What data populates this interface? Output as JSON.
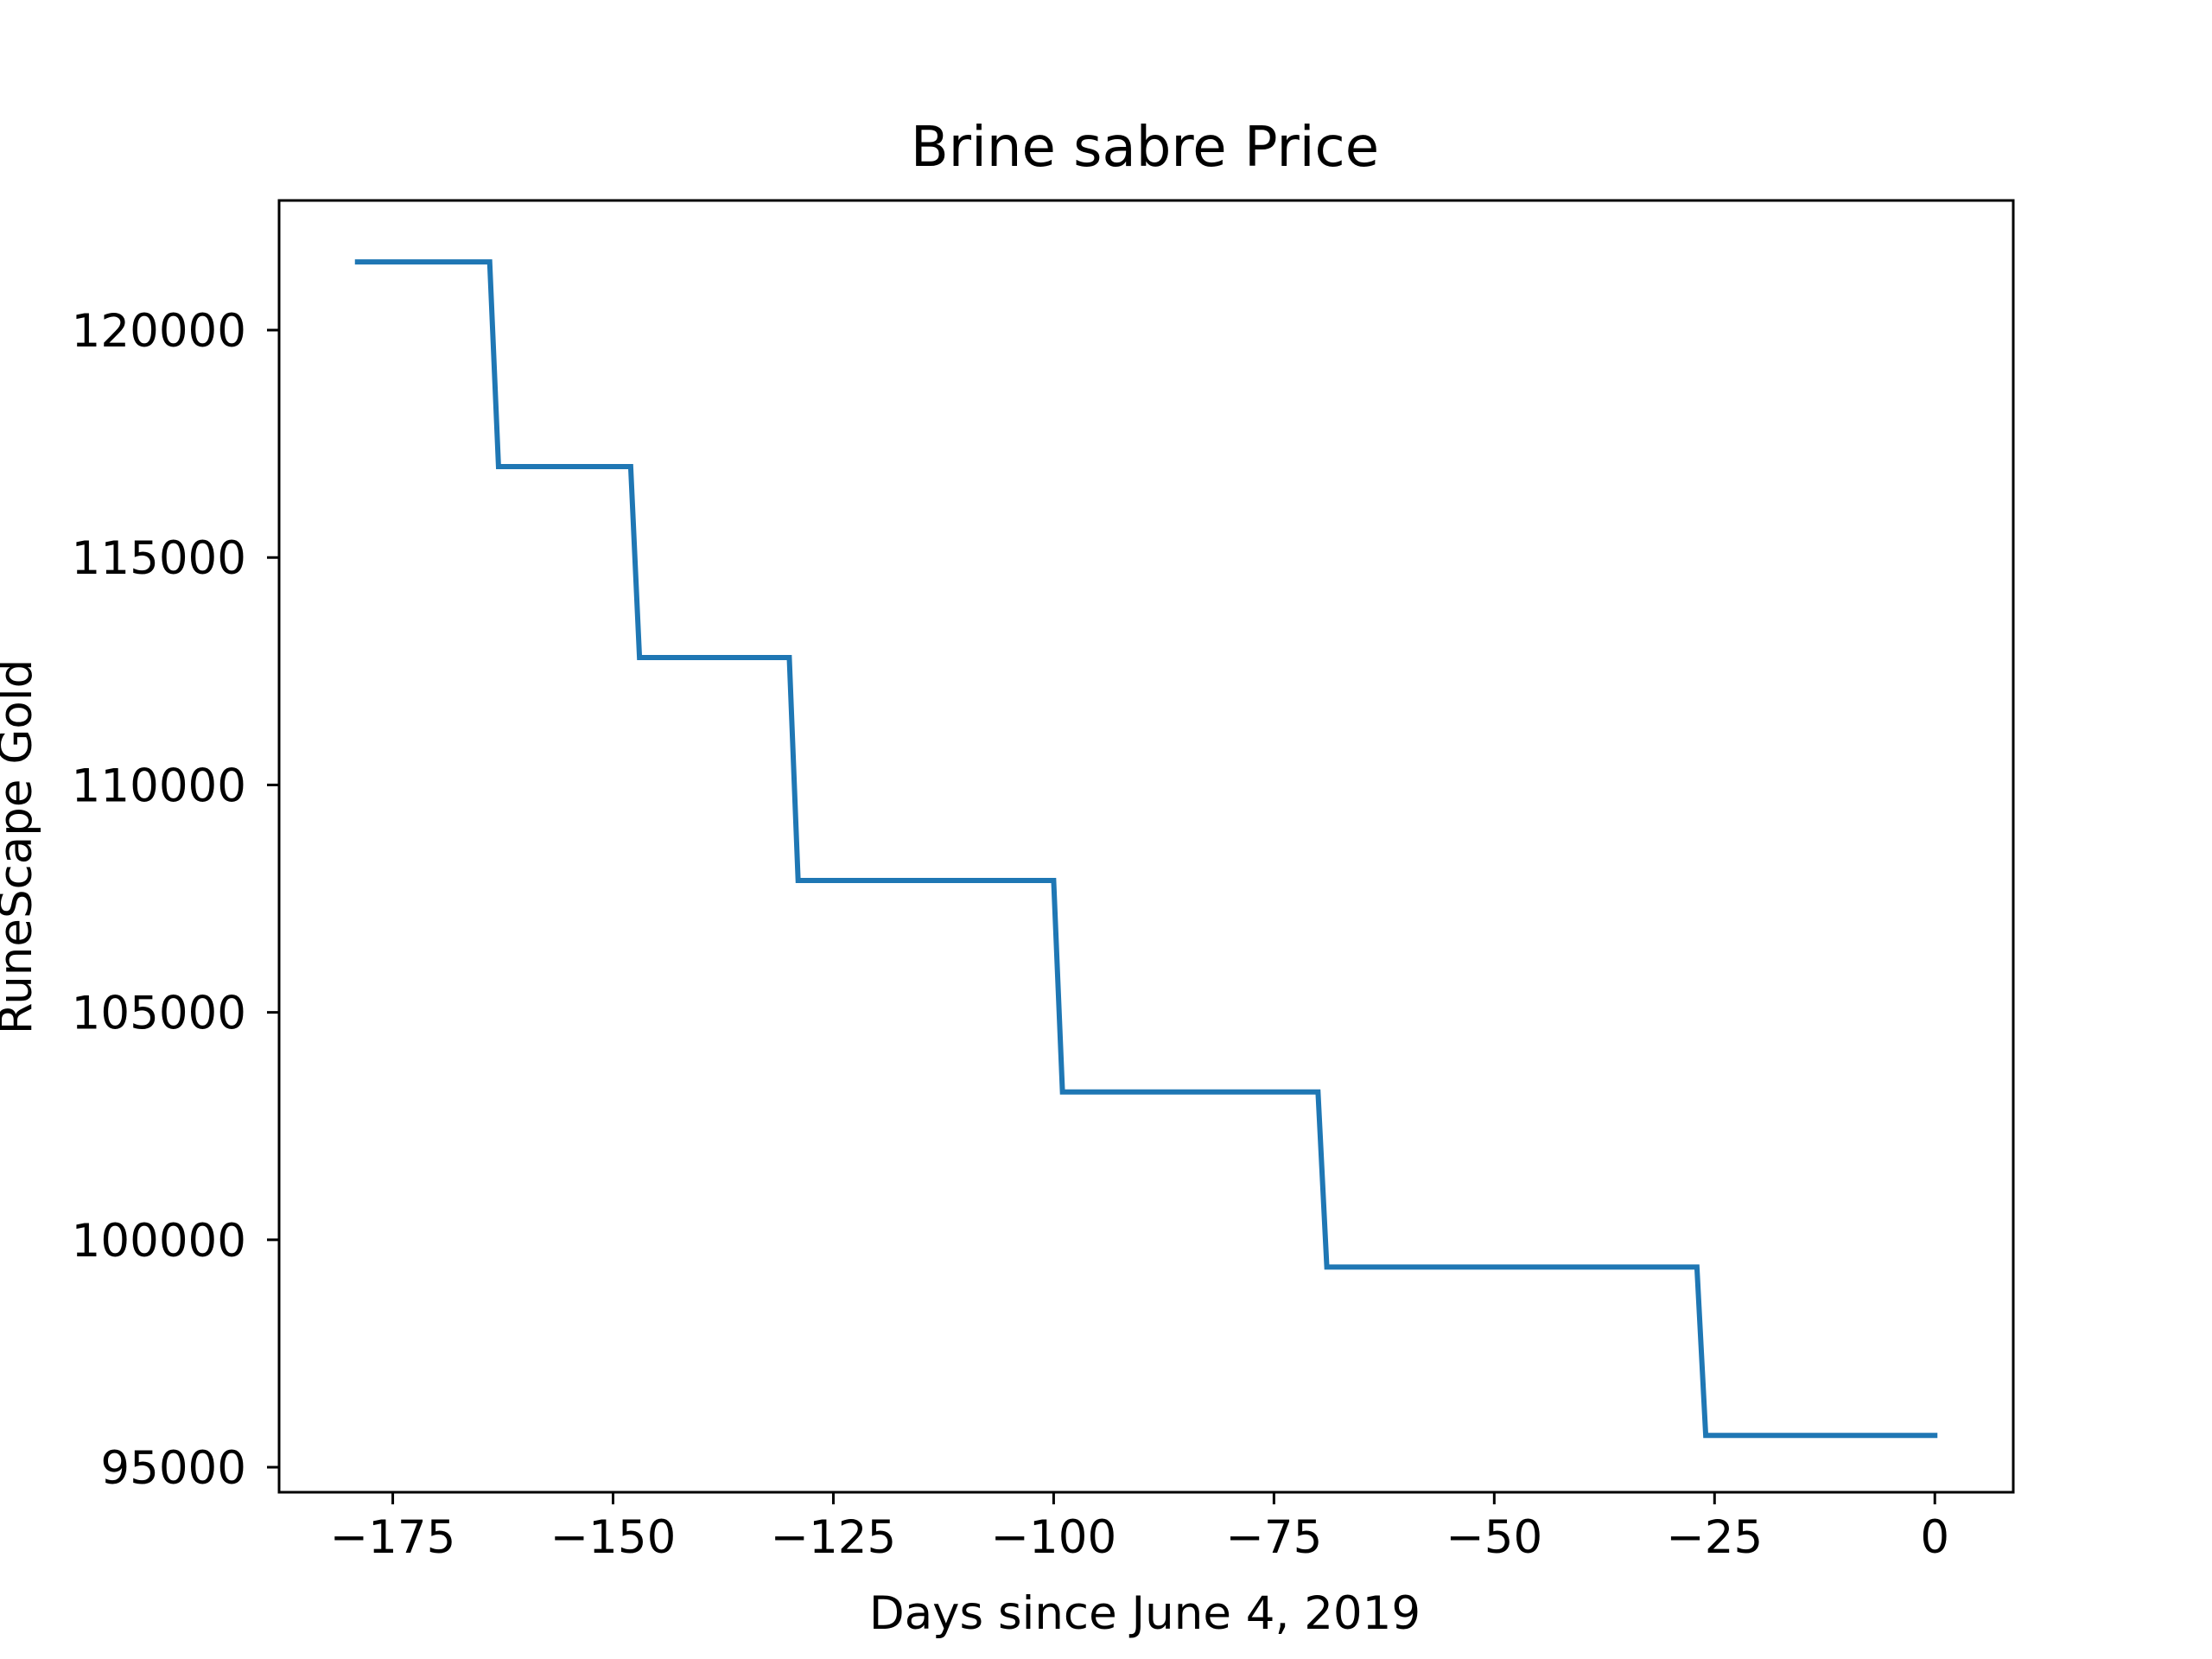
{
  "chart_data": {
    "type": "line",
    "title": "Brine sabre Price",
    "xlabel": "Days since June 4, 2019",
    "ylabel": "RuneScape Gold",
    "xlim": [
      -187.9,
      8.9
    ],
    "ylim": [
      94450,
      122850
    ],
    "x_ticks": [
      -175,
      -150,
      -125,
      -100,
      -75,
      -50,
      -25,
      0
    ],
    "x_tick_labels": [
      "−175",
      "−150",
      "−125",
      "−100",
      "−75",
      "−50",
      "−25",
      "0"
    ],
    "y_ticks": [
      95000,
      100000,
      105000,
      110000,
      115000,
      120000
    ],
    "y_tick_labels": [
      "95000",
      "100000",
      "105000",
      "110000",
      "115000",
      "120000"
    ],
    "grid": false,
    "line_color": "#1f77b4",
    "series": [
      {
        "x": [
          -179,
          -164,
          -163,
          -148,
          -147,
          -130,
          -129,
          -100,
          -99,
          -70,
          -69,
          -27,
          -26,
          0
        ],
        "y": [
          121500,
          121500,
          117000,
          117000,
          112800,
          112800,
          107900,
          107900,
          103250,
          103250,
          99400,
          99400,
          95700,
          95700
        ]
      }
    ]
  }
}
